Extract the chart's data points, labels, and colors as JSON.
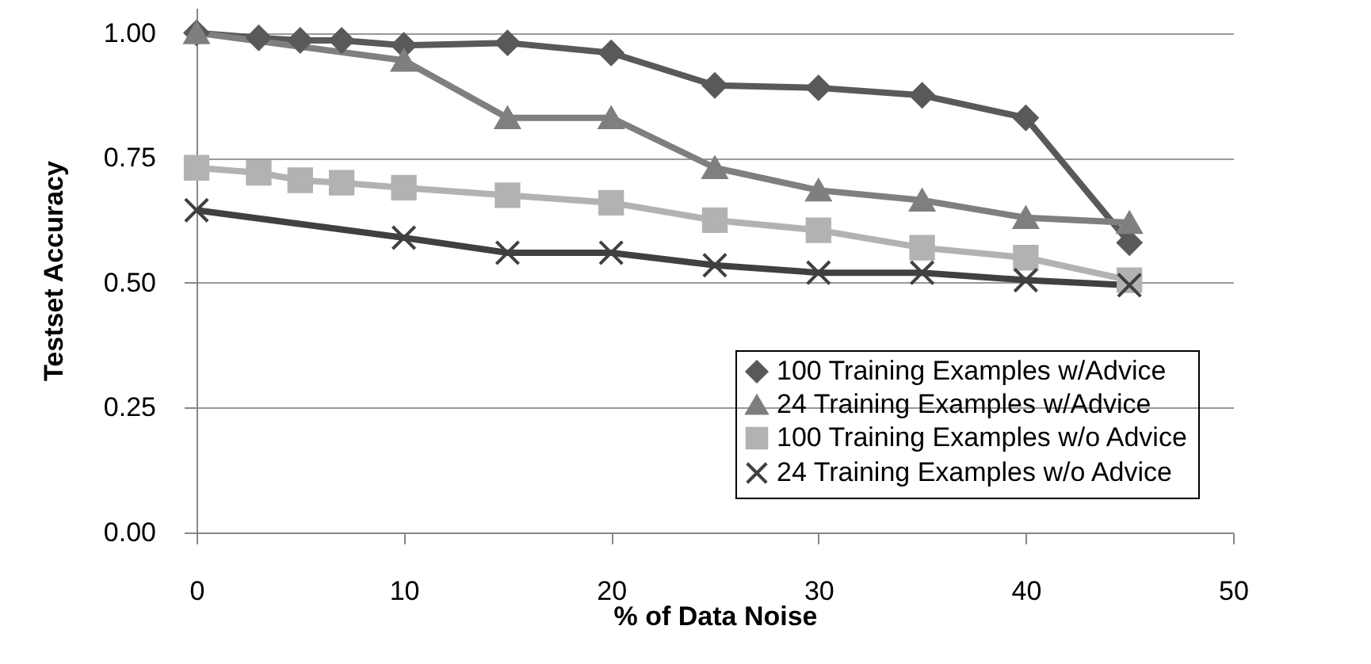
{
  "chart_data": {
    "type": "line",
    "xlabel": "% of Data Noise",
    "ylabel": "Testset Accuracy",
    "xlim": [
      0,
      50
    ],
    "xticks": [
      0,
      10,
      20,
      30,
      40,
      50
    ],
    "ylim": [
      0,
      1.05
    ],
    "yticks": [
      {
        "value": 0,
        "label": "0.00"
      },
      {
        "value": 0.25,
        "label": "0.25"
      },
      {
        "value": 0.5,
        "label": "0.50"
      },
      {
        "value": 0.75,
        "label": "0.75"
      },
      {
        "value": 1,
        "label": "1.00"
      }
    ],
    "grid": "y",
    "legend": "bottom right",
    "series": [
      {
        "name": "100 Training Examples w/Advice",
        "color": "#595959",
        "marker": "diamond",
        "x": [
          0,
          3,
          5,
          7,
          10,
          15,
          20,
          25,
          30,
          35,
          40,
          45
        ],
        "values": [
          1.0,
          0.99,
          0.985,
          0.985,
          0.975,
          0.98,
          0.96,
          0.895,
          0.89,
          0.875,
          0.83,
          0.58
        ]
      },
      {
        "name": "24 Training Examples w/Advice",
        "color": "#7f7f7f",
        "marker": "triangle",
        "x": [
          0,
          10,
          15,
          20,
          25,
          30,
          35,
          40,
          45
        ],
        "values": [
          1.0,
          0.945,
          0.83,
          0.83,
          0.73,
          0.685,
          0.665,
          0.63,
          0.62
        ]
      },
      {
        "name": "100 Training Examples w/o Advice",
        "color": "#b2b2b2",
        "marker": "square",
        "x": [
          0,
          3,
          5,
          7,
          10,
          15,
          20,
          25,
          30,
          35,
          40,
          45
        ],
        "values": [
          0.73,
          0.72,
          0.705,
          0.7,
          0.69,
          0.675,
          0.66,
          0.625,
          0.605,
          0.57,
          0.55,
          0.505
        ]
      },
      {
        "name": "24 Training Examples w/o Advice",
        "color": "#404040",
        "marker": "cross",
        "x": [
          0,
          10,
          15,
          20,
          25,
          30,
          35,
          40,
          45
        ],
        "values": [
          0.645,
          0.59,
          0.56,
          0.56,
          0.535,
          0.52,
          0.52,
          0.505,
          0.495
        ]
      }
    ]
  }
}
